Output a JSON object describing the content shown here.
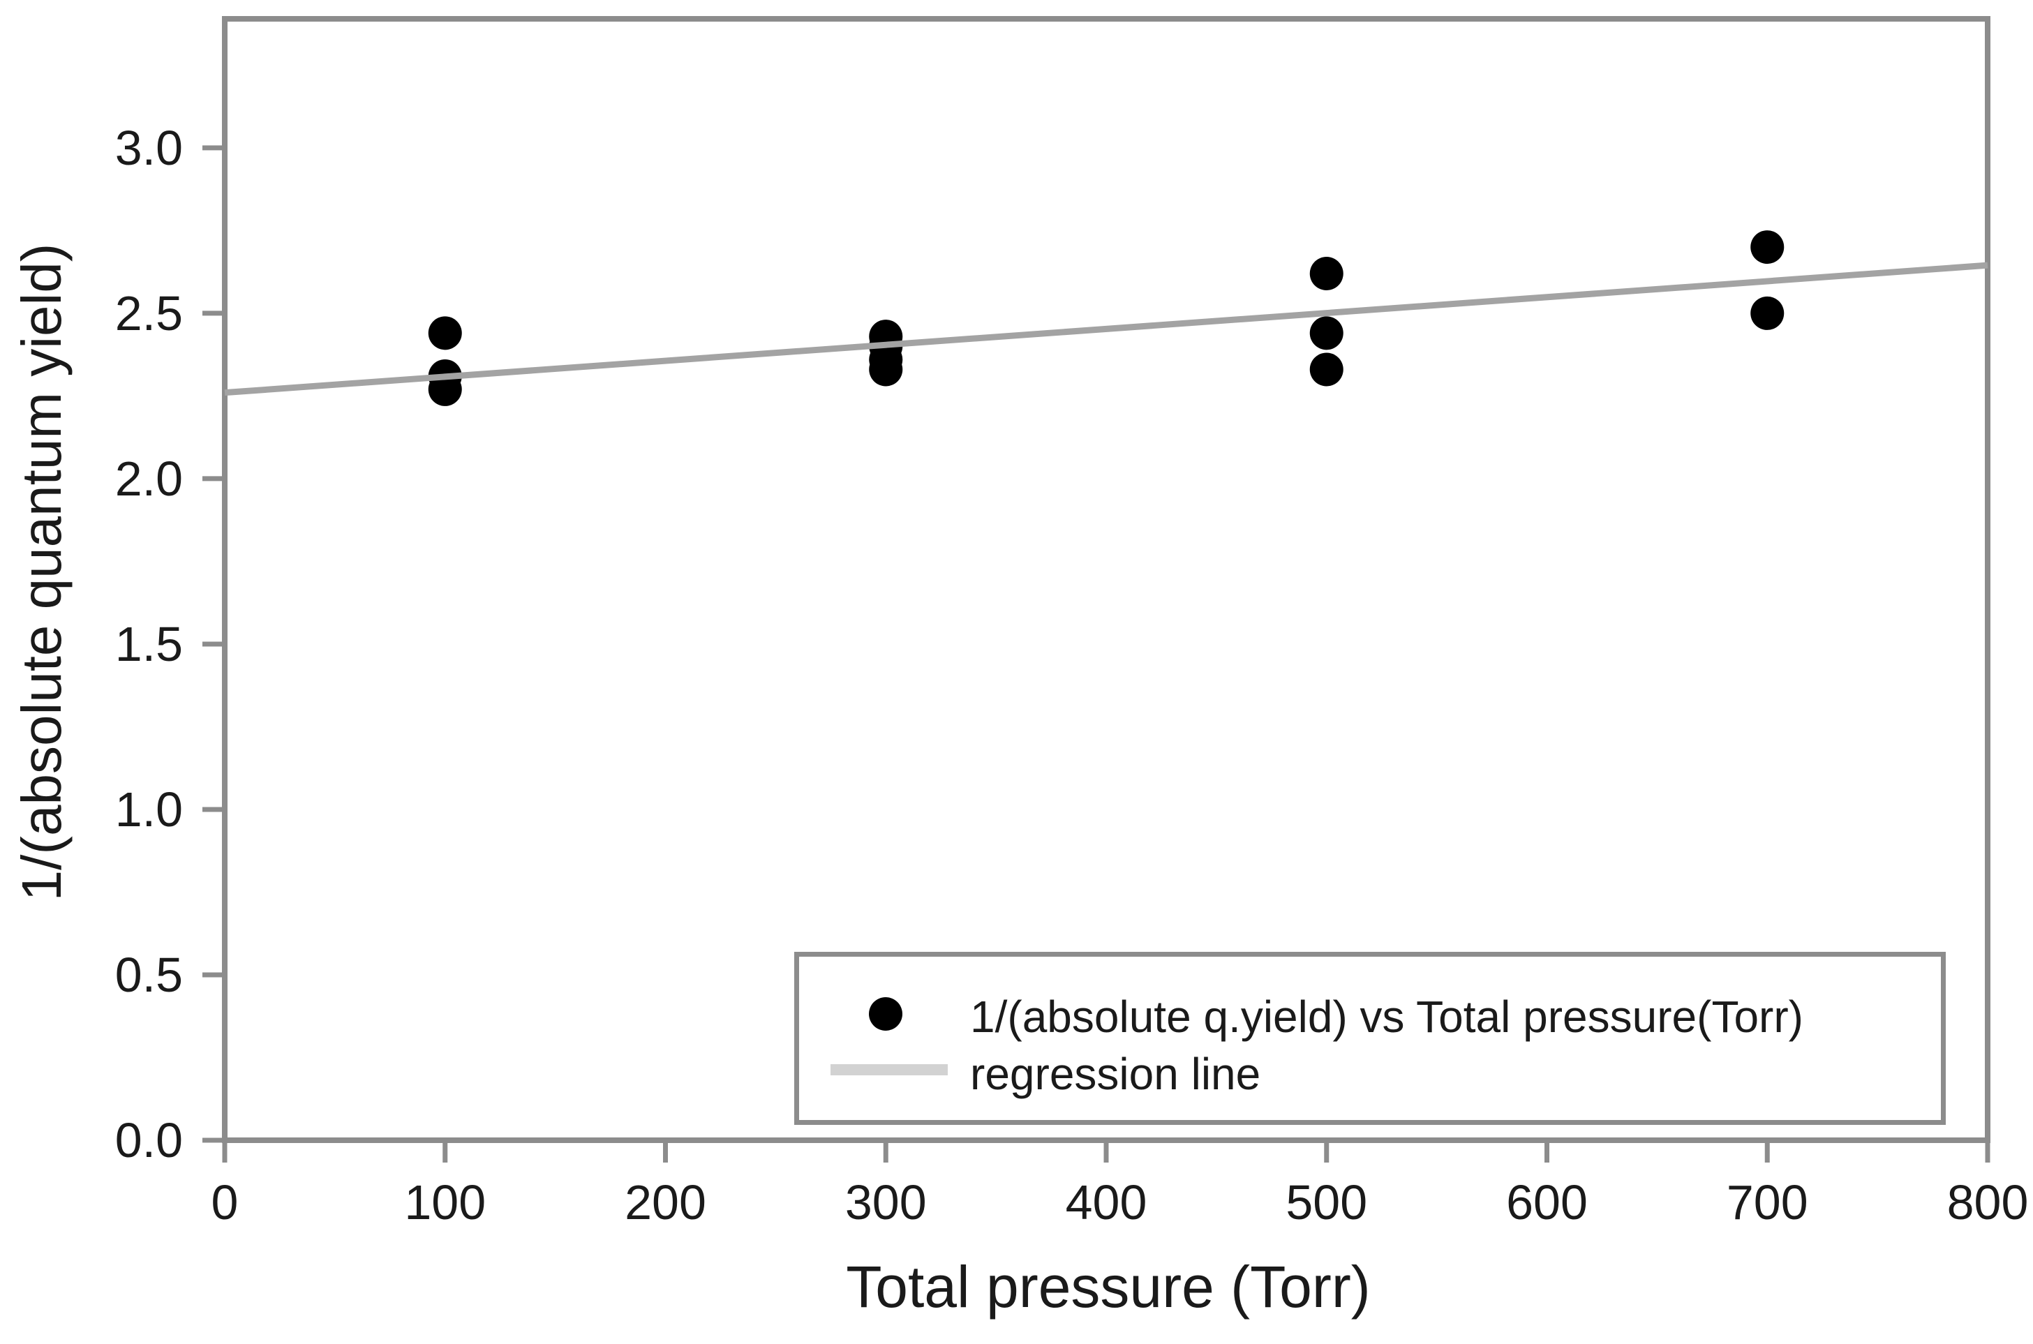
{
  "chart_data": {
    "type": "scatter",
    "title": "",
    "xlabel": "Total pressure (Torr)",
    "ylabel": "1/(absolute quantum yield)",
    "xlim": [
      0,
      800
    ],
    "ylim": [
      0,
      3.39
    ],
    "grid": false,
    "legend_position": "lower right",
    "xticks": {
      "values": [
        0,
        100,
        200,
        300,
        400,
        500,
        600,
        700,
        800
      ],
      "labels": [
        "0",
        "100",
        "200",
        "300",
        "400",
        "500",
        "600",
        "700",
        "800"
      ]
    },
    "yticks": {
      "values": [
        0.0,
        0.5,
        1.0,
        1.5,
        2.0,
        2.5,
        3.0
      ],
      "labels": [
        "0.0",
        "0.5",
        "1.0",
        "1.5",
        "2.0",
        "2.5",
        "3.0"
      ]
    },
    "series": [
      {
        "name": "1/(absolute q.yield) vs Total pressure(Torr)",
        "type": "scatter",
        "marker": "circle",
        "points": [
          {
            "x": 100,
            "y": 2.44
          },
          {
            "x": 100,
            "y": 2.31
          },
          {
            "x": 100,
            "y": 2.27
          },
          {
            "x": 300,
            "y": 2.43
          },
          {
            "x": 300,
            "y": 2.4
          },
          {
            "x": 300,
            "y": 2.36
          },
          {
            "x": 300,
            "y": 2.33
          },
          {
            "x": 500,
            "y": 2.62
          },
          {
            "x": 500,
            "y": 2.44
          },
          {
            "x": 500,
            "y": 2.33
          },
          {
            "x": 700,
            "y": 2.7
          },
          {
            "x": 700,
            "y": 2.5
          }
        ]
      },
      {
        "name": "regression line",
        "type": "line",
        "x": [
          0,
          800
        ],
        "y": [
          2.26,
          2.645
        ]
      }
    ],
    "colors": {
      "marker": "#000000",
      "regression_line": "#a3a3a3",
      "legend_line_swatch": "#d2d2d2",
      "axis": "#8c8c8c",
      "text": "#1a1a1a",
      "background": "#ffffff"
    }
  }
}
